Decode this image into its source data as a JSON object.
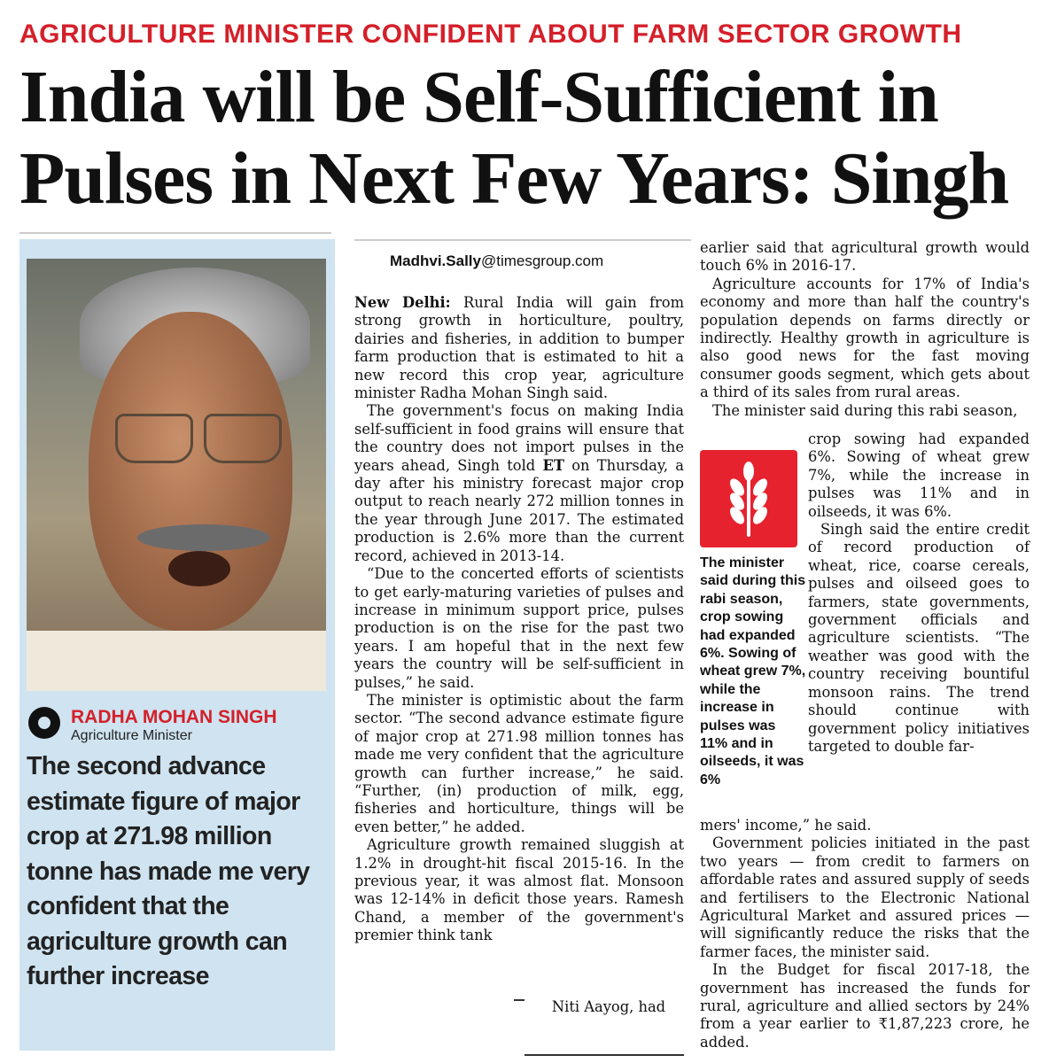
{
  "kicker": "AGRICULTURE MINISTER CONFIDENT ABOUT FARM SECTOR GROWTH",
  "headline": {
    "line1": "India will be Self-Sufficient in",
    "line2": "Pulses in Next Few Years: Singh"
  },
  "quote": {
    "name": "RADHA MOHAN SINGH",
    "role": "Agriculture Minister",
    "text": "The second advance estimate figure of major crop at 271.98 million tonne has made me very confident that the agriculture growth can further increase"
  },
  "byline": {
    "name": "Madhvi.Sally",
    "domain": "@timesgroup.com"
  },
  "article": {
    "dateline": "New Delhi:",
    "p1": "Rural India will gain from strong growth in horticulture, poultry, dairies and fisheries, in addition to bumper farm production that is estimated to hit a new record this crop year, agriculture minister Radha Mohan Singh said.",
    "p2a": "The government's focus on making India self-sufficient in food grains will ensure that the country does not import pulses in the years ahead, Singh told ",
    "p2_et": "ET",
    "p2b": " on Thursday, a day after his ministry forecast major crop output to reach nearly 272 million tonnes in the year through June 2017. The estimated production is 2.6% more than the current record, achieved in 2013-14.",
    "p3": "“Due to the concerted efforts of scientists to get early-maturing varieties of pulses and increase in minimum support price, pulses production is on the rise for the past two years. I am hopeful that in the next few years the country will be self-sufficient in pulses,” he said.",
    "p4": "The minister is optimistic about the farm sector. “The second advance estimate figure of major crop at 271.98 million tonnes has made me very confident that the agriculture growth can further increase,” he said. “Further, (in) production of milk, egg, fisheries and horticulture, things will be even better,” he added.",
    "p5": "Agriculture growth remained sluggish at 1.2% in drought-hit fiscal 2015-16. In the previous year, it was almost flat. Monsoon was 12-14% in deficit those years. Ramesh Chand, a member of the government's premier think tank",
    "p5_tail": "Niti Aayog, had",
    "p6": "earlier said that agricultural growth would touch 6% in 2016-17.",
    "p7": "Agriculture accounts for 17% of India's economy and more than half the country's population depends on farms directly or indirectly. Healthy growth in agriculture is also good news for the fast moving consumer goods segment, which gets about a third of its sales from rural areas.",
    "p8a": "The minister said during this rabi season,",
    "p8b": "crop sowing had expanded 6%. Sowing of wheat grew 7%, while the increase in pulses was 11% and in oilseeds, it was 6%.",
    "p9": "Singh said the entire credit of record production of wheat, rice, coarse cereals, pulses and oilseed goes to farmers, state governments, government officials and agriculture scientists. “The weather was good with the country receiving bountiful monsoon rains. The trend should continue with government policy initiatives targeted to double far-",
    "p9_end": "mers' income,” he said.",
    "p10": "Government policies initiated in the past two years — from credit to farmers on affordable rates and assured supply of seeds and fertilisers to the Electronic National Agricultural Market and assured prices — will significantly reduce the risks that the farmer faces, the minister said.",
    "p11": "In the Budget for fiscal 2017-18, the government has increased the funds for rural, agriculture and allied sectors by 24% from a year earlier to ₹1,87,223 crore, he added."
  },
  "callout": "The minister said during this rabi season, crop sowing had expanded 6%. Sowing of wheat grew 7%, while the increase in pulses was 11% and in oilseeds, it was 6%",
  "colors": {
    "accent_red": "#d4202a",
    "quote_bg": "#cfe3f0",
    "icon_red": "#e5222d"
  },
  "icons": {
    "wheat": "wheat-icon",
    "logo": "et-logo-icon"
  }
}
